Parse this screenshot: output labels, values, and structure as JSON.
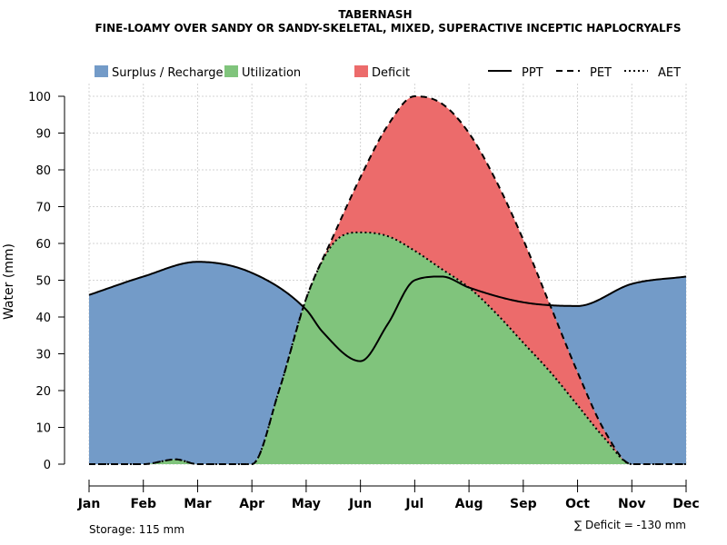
{
  "chart_data": {
    "type": "area",
    "title": "TABERNASH",
    "subtitle": "FINE-LOAMY OVER SANDY OR SANDY-SKELETAL, MIXED, SUPERACTIVE INCEPTIC HAPLOCRYALFS",
    "xlabel": "",
    "ylabel": "Water (mm)",
    "ylim": [
      0,
      100
    ],
    "yticks": [
      0,
      10,
      20,
      30,
      40,
      50,
      60,
      70,
      80,
      90,
      100
    ],
    "grid": true,
    "categories": [
      "Jan",
      "Feb",
      "Mar",
      "Apr",
      "May",
      "Jun",
      "Jul",
      "Aug",
      "Sep",
      "Oct",
      "Nov",
      "Dec"
    ],
    "legend": {
      "areas": [
        {
          "name": "Surplus / Recharge",
          "color": "#739bc8"
        },
        {
          "name": "Utilization",
          "color": "#80c47c"
        },
        {
          "name": "Deficit",
          "color": "#ec6b6b"
        }
      ],
      "lines": [
        {
          "name": "PPT",
          "dash": "solid"
        },
        {
          "name": "PET",
          "dash": "dashed"
        },
        {
          "name": "AET",
          "dash": "dotted"
        }
      ]
    },
    "series": [
      {
        "name": "PPT",
        "x": [
          1,
          2,
          3,
          4,
          5,
          5.3,
          6,
          6.5,
          7,
          7.5,
          8,
          9,
          10,
          11,
          12
        ],
        "values": [
          46,
          51,
          55,
          52,
          42,
          36,
          28,
          38,
          50,
          51,
          48,
          44,
          43,
          49,
          51
        ]
      },
      {
        "name": "PET",
        "x": [
          1,
          2,
          2.6,
          3,
          3.5,
          4,
          4.5,
          5,
          5.5,
          6,
          6.5,
          7,
          7.5,
          8,
          8.5,
          9,
          9.5,
          10,
          10.5,
          11,
          12
        ],
        "values": [
          0,
          0,
          1.3,
          0,
          0,
          0,
          20,
          45,
          62,
          78,
          92,
          100,
          98,
          90,
          77,
          61,
          43,
          25,
          9,
          0,
          0
        ]
      },
      {
        "name": "AET",
        "x": [
          1,
          2,
          2.6,
          3,
          3.5,
          4,
          4.5,
          5,
          5.5,
          6,
          6.5,
          7,
          7.5,
          8,
          8.5,
          9,
          9.5,
          10,
          10.5,
          11,
          12
        ],
        "values": [
          0,
          0,
          1.3,
          0,
          0,
          0,
          20,
          45,
          60,
          63,
          62,
          58,
          53,
          48,
          41,
          33,
          25,
          16,
          7,
          0,
          0
        ]
      }
    ],
    "storage_label": "Storage: 115 mm",
    "deficit_label": "∑ Deficit = -130 mm"
  }
}
